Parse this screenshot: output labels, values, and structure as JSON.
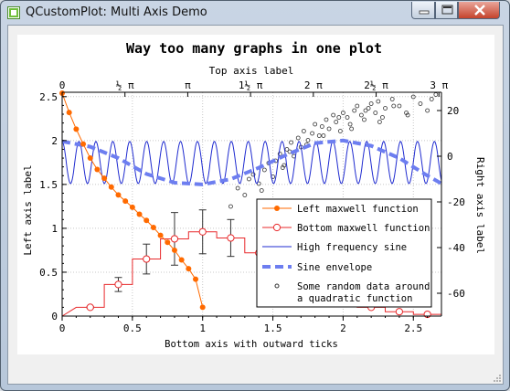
{
  "window": {
    "title": "QCustomPlot: Multi Axis Demo",
    "controls": [
      "minimize",
      "maximize",
      "close"
    ]
  },
  "chart_data": {
    "type": "line",
    "title": "Way too many graphs in one plot",
    "top_axis_label": "Top axis label",
    "xlabel": "Bottom axis with outward ticks",
    "ylabel": "Left axis label",
    "right_axis_label": "Right axis label",
    "xlim": [
      0,
      2.7
    ],
    "ylim": [
      0,
      2.55
    ],
    "y2lim": [
      -70,
      28
    ],
    "x_ticks": [
      "0",
      "0.5",
      "1",
      "1.5",
      "2",
      "2.5"
    ],
    "y_ticks": [
      "0",
      "0.5",
      "1",
      "1.5",
      "2",
      "2.5"
    ],
    "y2_ticks": [
      "-60",
      "-40",
      "-20",
      "0",
      "20"
    ],
    "top_ticks": [
      {
        "value": 0,
        "label": "0"
      },
      {
        "value": 0.5,
        "label": "½ π"
      },
      {
        "value": 1,
        "label": "π"
      },
      {
        "value": 1.5,
        "label": "1½ π"
      },
      {
        "value": 2,
        "label": "2 π"
      },
      {
        "value": 2.5,
        "label": "2½ π"
      },
      {
        "value": 3,
        "label": "3 π"
      }
    ],
    "grid": true,
    "legend_position": "bottom-right",
    "series": [
      {
        "name": "Left maxwell function",
        "style": "line with filled dots",
        "color": "#ff6a00",
        "x": [
          0,
          0.05,
          0.1,
          0.15,
          0.2,
          0.25,
          0.3,
          0.35,
          0.4,
          0.45,
          0.5,
          0.55,
          0.6,
          0.65,
          0.7,
          0.75,
          0.8,
          0.85,
          0.9,
          0.95,
          1.0
        ],
        "y": [
          2.54,
          2.32,
          2.13,
          1.96,
          1.8,
          1.67,
          1.57,
          1.47,
          1.38,
          1.31,
          1.24,
          1.16,
          1.09,
          1.01,
          0.92,
          0.84,
          0.75,
          0.64,
          0.54,
          0.42,
          0.1
        ]
      },
      {
        "name": "Bottom maxwell function",
        "style": "step line with open circles and error bars",
        "color": "#e8292b",
        "error_bar_color": "#333333",
        "x": [
          0.2,
          0.4,
          0.6,
          0.8,
          1.0,
          1.2,
          1.4,
          1.6,
          1.8,
          2.0,
          2.2,
          2.4,
          2.6
        ],
        "y": [
          0.1,
          0.36,
          0.65,
          0.88,
          0.96,
          0.89,
          0.72,
          0.52,
          0.34,
          0.2,
          0.1,
          0.05,
          0.02
        ],
        "err": [
          0.01,
          0.08,
          0.17,
          0.3,
          0.25,
          0.21,
          0.0,
          0.0,
          0.0,
          0.0,
          0.0,
          0.0,
          0.0
        ]
      },
      {
        "name": "High frequency sine",
        "style": "line",
        "color": "#1f2bd0",
        "center": 1.75,
        "amplitude": 0.24,
        "cycles_per_unit": 8.3
      },
      {
        "name": "Sine envelope",
        "style": "thick dashed line",
        "color": "#6d7ef0",
        "x": [
          0,
          0.2,
          0.4,
          0.6,
          0.8,
          1.0,
          1.2,
          1.4,
          1.6,
          1.8,
          2.0,
          2.2,
          2.4,
          2.6,
          2.7
        ],
        "y": [
          1.99,
          1.93,
          1.8,
          1.62,
          1.52,
          1.5,
          1.56,
          1.69,
          1.84,
          1.97,
          2.0,
          1.94,
          1.8,
          1.6,
          1.51
        ]
      },
      {
        "name": "Some random data around\na quadratic function",
        "style": "open circles",
        "color": "#333333",
        "x": [
          1.2,
          1.25,
          1.3,
          1.33,
          1.36,
          1.4,
          1.44,
          1.47,
          1.5,
          1.52,
          1.55,
          1.58,
          1.6,
          1.63,
          1.65,
          1.68,
          1.7,
          1.72,
          1.75,
          1.78,
          1.8,
          1.83,
          1.85,
          1.88,
          1.9,
          1.93,
          1.95,
          1.98,
          2.0,
          2.03,
          2.05,
          2.08,
          2.1,
          2.13,
          2.15,
          2.18,
          2.2,
          2.23,
          2.25,
          2.28,
          2.3,
          2.35,
          2.4,
          2.45,
          2.5,
          2.55,
          2.6,
          2.63,
          2.66,
          1.42,
          1.57,
          1.62,
          1.74,
          1.86,
          1.97,
          2.06,
          2.16,
          2.26,
          2.36,
          2.46
        ],
        "y2": [
          -22,
          -14,
          -17,
          -10,
          -8,
          -12,
          -6,
          -3,
          -9,
          -2,
          1,
          -4,
          3,
          6,
          0,
          8,
          4,
          11,
          7,
          10,
          14,
          9,
          13,
          16,
          12,
          18,
          15,
          11,
          19,
          17,
          14,
          20,
          22,
          18,
          16,
          21,
          23,
          19,
          24,
          17,
          21,
          25,
          22,
          19,
          26,
          23,
          20,
          25,
          27,
          -15,
          -5,
          2,
          5,
          9,
          17,
          12,
          20,
          15,
          22,
          18
        ]
      }
    ]
  }
}
